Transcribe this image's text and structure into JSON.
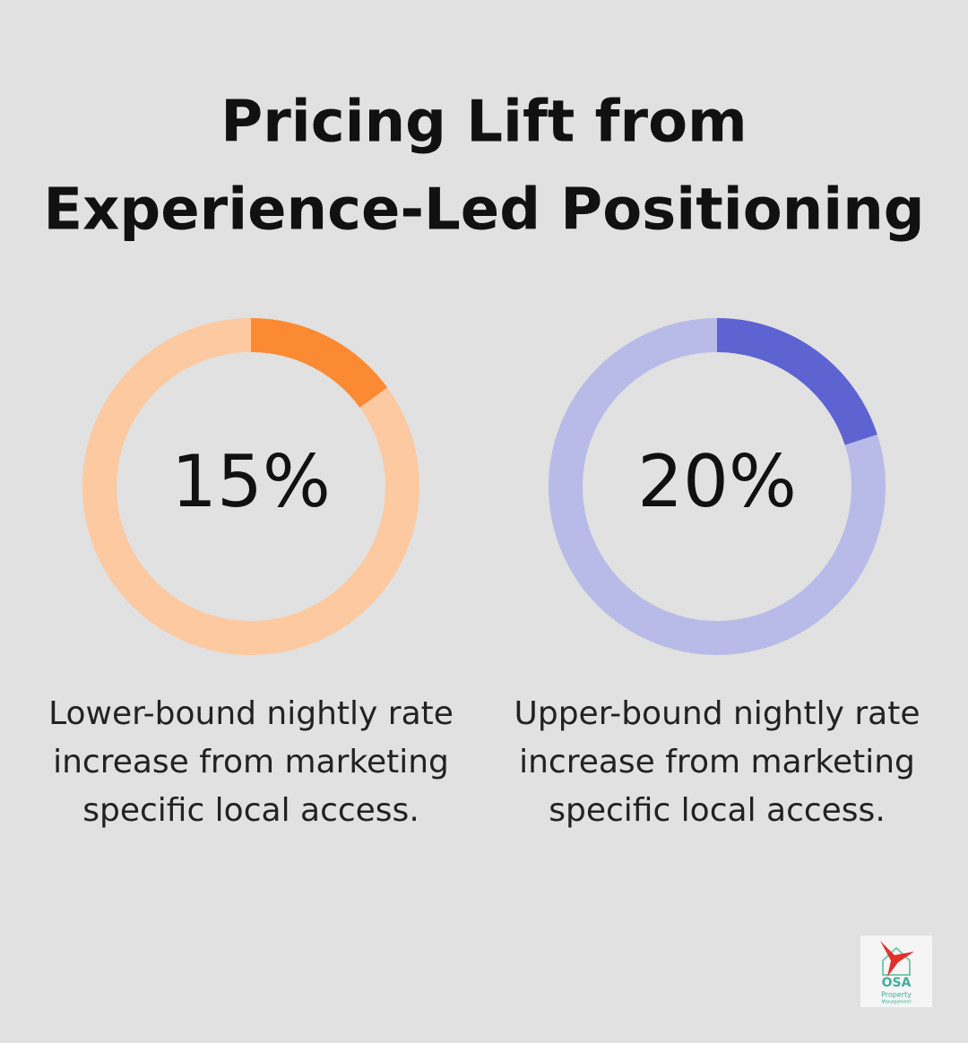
{
  "title": [
    "Pricing Lift from",
    "Experience-Led Positioning"
  ],
  "chart_data": [
    {
      "type": "donut",
      "values": [
        15
      ],
      "value_labels": [
        "15%"
      ],
      "color": "#fb8a33",
      "track_color": "#fdc9a0",
      "caption": [
        "Lower-bound nightly rate",
        "increase from marketing",
        "specific local access."
      ]
    },
    {
      "type": "donut",
      "values": [
        20
      ],
      "value_labels": [
        "20%"
      ],
      "color": "#5d63d1",
      "track_color": "#b8bbe8",
      "caption": [
        "Upper-bound nightly rate",
        "increase from marketing",
        "specific local access."
      ]
    }
  ],
  "logo": {
    "name": "OSA",
    "line1": "Property",
    "line2": "Management"
  }
}
